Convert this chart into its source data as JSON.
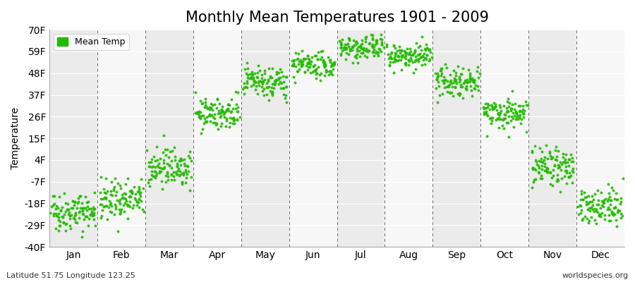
{
  "title": "Monthly Mean Temperatures 1901 - 2009",
  "ylabel": "Temperature",
  "xlabel_bottom_left": "Latitude 51.75 Longitude 123.25",
  "xlabel_bottom_right": "worldspecies.org",
  "ytick_labels": [
    "-40F",
    "-29F",
    "-18F",
    "-7F",
    "4F",
    "15F",
    "26F",
    "37F",
    "48F",
    "59F",
    "70F"
  ],
  "ytick_values": [
    -40,
    -29,
    -18,
    -7,
    4,
    15,
    26,
    37,
    48,
    59,
    70
  ],
  "ylim": [
    -40,
    70
  ],
  "month_labels": [
    "Jan",
    "Feb",
    "Mar",
    "Apr",
    "May",
    "Jun",
    "Jul",
    "Aug",
    "Sep",
    "Oct",
    "Nov",
    "Dec"
  ],
  "background_color": "#ffffff",
  "band_colors": [
    "#ebebeb",
    "#f7f7f7"
  ],
  "dot_color": "#22bb00",
  "legend_label": "Mean Temp",
  "title_fontsize": 15,
  "label_fontsize": 10,
  "monthly_means_f": [
    -22,
    -16,
    1,
    28,
    43,
    52,
    61,
    57,
    44,
    28,
    1,
    -20
  ],
  "monthly_spreads_f": [
    5,
    5,
    5,
    4,
    4,
    3,
    3,
    3,
    4,
    4,
    5,
    5
  ],
  "n_years": 109
}
